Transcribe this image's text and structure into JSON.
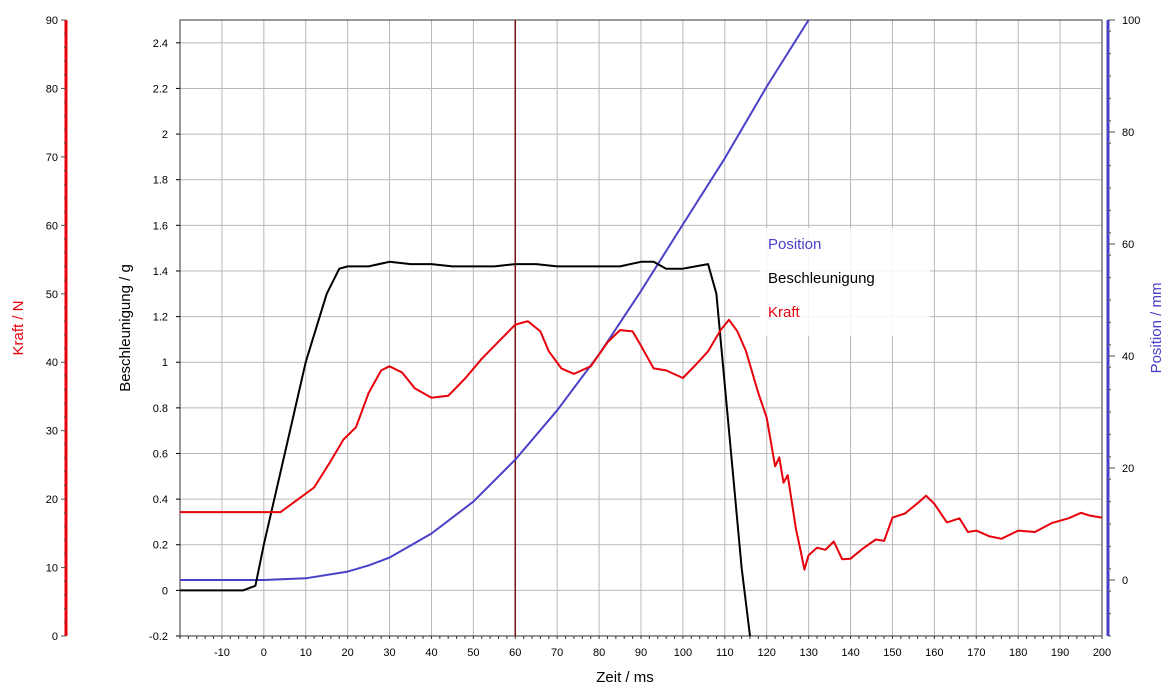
{
  "chart_data": {
    "type": "line",
    "title": "",
    "xlabel": "Zeit / ms",
    "xlim": [
      -20,
      200
    ],
    "xticks": [
      -10,
      0,
      10,
      20,
      30,
      40,
      50,
      60,
      70,
      80,
      90,
      100,
      110,
      120,
      130,
      140,
      150,
      160,
      170,
      180,
      190,
      200
    ],
    "grid": true,
    "axes": {
      "acceleration": {
        "label": "Beschleunigung / g",
        "color": "#000000",
        "position": "left",
        "lim": [
          -0.2,
          2.5
        ],
        "ticks": [
          "-0.2",
          "0",
          "0.2",
          "0.4",
          "0.6",
          "0.8",
          "1",
          "1.2",
          "1.4",
          "1.6",
          "1.8",
          "2",
          "2.2",
          "2.4"
        ]
      },
      "force": {
        "label": "Kraft / N",
        "color": "#e8000b",
        "position": "far-left",
        "lim": [
          0,
          90
        ],
        "ticks": [
          "0",
          "10",
          "20",
          "30",
          "40",
          "50",
          "60",
          "70",
          "80",
          "90"
        ]
      },
      "position": {
        "label": "Position / mm",
        "color": "#4a40c8",
        "position": "right",
        "lim": [
          -10,
          100
        ],
        "ticks": [
          "0",
          "20",
          "40",
          "60",
          "80",
          "100"
        ]
      }
    },
    "cursor_x": 60,
    "cursor_color": "#7a1010",
    "legend": {
      "placement": "center-right",
      "entries": [
        "Position",
        "Beschleunigung",
        "Kraft"
      ]
    },
    "series": [
      {
        "name": "Position",
        "axis": "position",
        "color": "#4a40c8",
        "x": [
          -20,
          0,
          10,
          20,
          25,
          30,
          40,
          50,
          60,
          70,
          80,
          90,
          100,
          110,
          120,
          130
        ],
        "values": [
          0,
          0,
          0.3,
          1.5,
          2.6,
          4,
          8.3,
          14,
          21.5,
          30.3,
          40.3,
          51.6,
          63.5,
          75.3,
          88.1,
          100
        ]
      },
      {
        "name": "Beschleunigung",
        "axis": "acceleration",
        "color": "#000000",
        "x": [
          -20,
          -5,
          -2,
          0,
          5,
          10,
          15,
          18,
          20,
          25,
          30,
          35,
          40,
          45,
          50,
          55,
          60,
          65,
          70,
          75,
          80,
          85,
          90,
          93,
          96,
          100,
          103,
          106,
          108,
          110,
          112,
          114,
          116
        ],
        "values": [
          0,
          0,
          0.02,
          0.2,
          0.6,
          1.0,
          1.3,
          1.41,
          1.42,
          1.42,
          1.44,
          1.43,
          1.43,
          1.42,
          1.42,
          1.42,
          1.43,
          1.43,
          1.42,
          1.42,
          1.42,
          1.42,
          1.44,
          1.44,
          1.41,
          1.41,
          1.42,
          1.43,
          1.3,
          0.9,
          0.5,
          0.1,
          -0.2
        ]
      },
      {
        "name": "Kraft",
        "axis": "force",
        "color": "#e8000b",
        "x": [
          -20,
          -10,
          0,
          4,
          8,
          12,
          16,
          19,
          22,
          25,
          28,
          30,
          33,
          36,
          40,
          44,
          48,
          52,
          56,
          60,
          63,
          66,
          68,
          71,
          74,
          78,
          82,
          85,
          88,
          90,
          93,
          96,
          100,
          103,
          106,
          109,
          111,
          113,
          115,
          118,
          120,
          122,
          123,
          124,
          125,
          126,
          127,
          128,
          129,
          130,
          132,
          134,
          136,
          138,
          140,
          143,
          146,
          148,
          150,
          153,
          156,
          158,
          160,
          163,
          166,
          168,
          170,
          173,
          176,
          180,
          184,
          188,
          192,
          195,
          197,
          200
        ],
        "values": [
          18.1,
          18.1,
          18.1,
          18.1,
          19.9,
          21.7,
          25.6,
          28.7,
          30.5,
          35.5,
          38.8,
          39.4,
          38.5,
          36.2,
          34.8,
          35.1,
          37.6,
          40.5,
          43,
          45.5,
          46,
          44.5,
          41.6,
          39.1,
          38.3,
          39.4,
          42.9,
          44.7,
          44.5,
          42.4,
          39.1,
          38.8,
          37.7,
          39.6,
          41.6,
          44.7,
          46.2,
          44.5,
          41.7,
          35.5,
          31.9,
          24.8,
          26.1,
          22.4,
          23.5,
          19.5,
          15.5,
          12.7,
          9.7,
          11.8,
          12.9,
          12.6,
          13.8,
          11.2,
          11.3,
          12.8,
          14.1,
          13.9,
          17.3,
          17.9,
          19.4,
          20.5,
          19.3,
          16.6,
          17.2,
          15.2,
          15.4,
          14.6,
          14.2,
          15.4,
          15.2,
          16.5,
          17.2,
          18.0,
          17.6,
          17.3
        ]
      }
    ]
  }
}
